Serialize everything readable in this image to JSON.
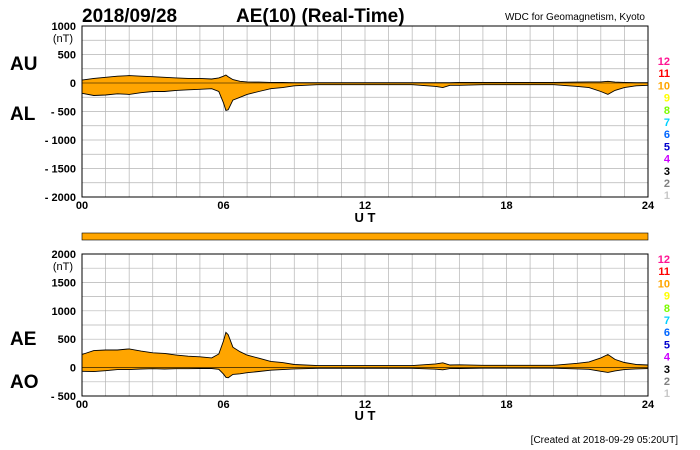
{
  "header": {
    "date": "2018/09/28",
    "title": "AE(10) (Real-Time)",
    "source": "WDC for Geomagnetism, Kyoto"
  },
  "footer": {
    "created": "[Created at 2018-09-29 05:20UT]"
  },
  "colors": {
    "fill": "#ffa500",
    "grid": "#b4b4b4",
    "station_scale": [
      {
        "label": "12",
        "color": "#ff1493"
      },
      {
        "label": "11",
        "color": "#ff0000"
      },
      {
        "label": "10",
        "color": "#ffa500"
      },
      {
        "label": "9",
        "color": "#ffff00"
      },
      {
        "label": "8",
        "color": "#7cfc00"
      },
      {
        "label": "7",
        "color": "#00d0ff"
      },
      {
        "label": "6",
        "color": "#0066ff"
      },
      {
        "label": "5",
        "color": "#0000cd"
      },
      {
        "label": "4",
        "color": "#cc00ff"
      },
      {
        "label": "3",
        "color": "#000000"
      },
      {
        "label": "2",
        "color": "#808080"
      },
      {
        "label": "1",
        "color": "#c8c8c8"
      }
    ]
  },
  "chart_data": [
    {
      "type": "area",
      "panel": "AU/AL",
      "upper_label": "AU",
      "lower_label": "AL",
      "unit": "(nT)",
      "xlabel": "U T",
      "xticks": [
        "00",
        "06",
        "12",
        "18",
        "24"
      ],
      "xlim": [
        0,
        24
      ],
      "ylim": [
        -2000,
        1000
      ],
      "yticks": [
        "1000",
        "500",
        "0",
        "- 500",
        "- 1000",
        "- 1500",
        "- 2000"
      ],
      "x": [
        0,
        0.5,
        1,
        1.5,
        2,
        2.5,
        3,
        3.5,
        4,
        4.5,
        5,
        5.5,
        5.8,
        6,
        6.1,
        6.2,
        6.4,
        6.7,
        7,
        7.5,
        8,
        8.5,
        9,
        10,
        11,
        12,
        13,
        14,
        15,
        15.3,
        15.6,
        16,
        17,
        18,
        19,
        20,
        21,
        21.5,
        22,
        22.3,
        22.6,
        23,
        23.5,
        24
      ],
      "series": [
        {
          "name": "AU",
          "values": [
            50,
            80,
            100,
            120,
            130,
            120,
            110,
            100,
            90,
            80,
            80,
            70,
            90,
            120,
            140,
            110,
            60,
            30,
            20,
            15,
            10,
            8,
            5,
            5,
            5,
            5,
            5,
            5,
            5,
            5,
            5,
            10,
            10,
            10,
            10,
            10,
            15,
            20,
            20,
            30,
            15,
            10,
            5,
            5
          ]
        },
        {
          "name": "AL",
          "values": [
            -180,
            -220,
            -210,
            -190,
            -200,
            -170,
            -150,
            -150,
            -130,
            -120,
            -110,
            -100,
            -150,
            -350,
            -480,
            -470,
            -300,
            -250,
            -200,
            -150,
            -100,
            -80,
            -50,
            -30,
            -30,
            -30,
            -30,
            -30,
            -60,
            -80,
            -40,
            -40,
            -30,
            -30,
            -30,
            -30,
            -60,
            -80,
            -150,
            -200,
            -130,
            -80,
            -50,
            -40
          ]
        }
      ]
    },
    {
      "type": "area",
      "panel": "AE/AO",
      "upper_label": "AE",
      "lower_label": "AO",
      "unit": "(nT)",
      "xlabel": "U T",
      "xticks": [
        "00",
        "06",
        "12",
        "18",
        "24"
      ],
      "xlim": [
        0,
        24
      ],
      "ylim": [
        -500,
        2000
      ],
      "yticks": [
        "2000",
        "1500",
        "1000",
        "500",
        "0",
        "- 500"
      ],
      "x": [
        0,
        0.5,
        1,
        1.5,
        2,
        2.5,
        3,
        3.5,
        4,
        4.5,
        5,
        5.5,
        5.8,
        6,
        6.1,
        6.2,
        6.4,
        6.7,
        7,
        7.5,
        8,
        8.5,
        9,
        10,
        11,
        12,
        13,
        14,
        15,
        15.3,
        15.6,
        16,
        17,
        18,
        19,
        20,
        21,
        21.5,
        22,
        22.3,
        22.6,
        23,
        23.5,
        24
      ],
      "series": [
        {
          "name": "AE",
          "values": [
            230,
            300,
            310,
            310,
            330,
            290,
            260,
            250,
            220,
            200,
            190,
            170,
            240,
            470,
            620,
            580,
            360,
            280,
            220,
            165,
            110,
            88,
            55,
            35,
            35,
            35,
            35,
            35,
            65,
            85,
            45,
            50,
            40,
            40,
            40,
            40,
            75,
            100,
            170,
            230,
            145,
            90,
            55,
            45
          ]
        },
        {
          "name": "AO",
          "values": [
            -65,
            -70,
            -55,
            -35,
            -35,
            -25,
            -20,
            -25,
            -20,
            -20,
            -15,
            -15,
            -30,
            -115,
            -170,
            -180,
            -120,
            -110,
            -90,
            -68,
            -45,
            -36,
            -23,
            -13,
            -13,
            -13,
            -13,
            -13,
            -28,
            -38,
            -18,
            -15,
            -10,
            -10,
            -10,
            -10,
            -23,
            -30,
            -65,
            -85,
            -58,
            -35,
            -23,
            -18
          ]
        }
      ]
    }
  ]
}
